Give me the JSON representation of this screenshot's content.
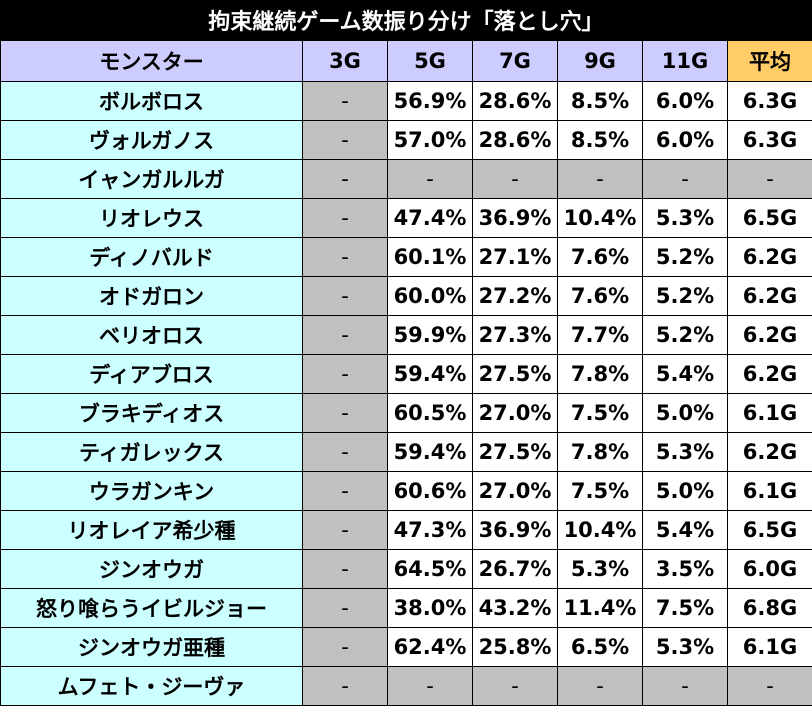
{
  "title": "拘束継続ゲーム数振り分け「落とし穴」",
  "table": {
    "headers": [
      "モンスター",
      "3G",
      "5G",
      "7G",
      "9G",
      "11G",
      "平均"
    ],
    "rows": [
      {
        "name": "ボルボロス",
        "g3": "-",
        "g5": "56.9%",
        "g7": "28.6%",
        "g9": "8.5%",
        "g11": "6.0%",
        "avg": "6.3G"
      },
      {
        "name": "ヴォルガノス",
        "g3": "-",
        "g5": "57.0%",
        "g7": "28.6%",
        "g9": "8.5%",
        "g11": "6.0%",
        "avg": "6.3G"
      },
      {
        "name": "イャンガルルガ",
        "g3": "-",
        "g5": "-",
        "g7": "-",
        "g9": "-",
        "g11": "-",
        "avg": "-"
      },
      {
        "name": "リオレウス",
        "g3": "-",
        "g5": "47.4%",
        "g7": "36.9%",
        "g9": "10.4%",
        "g11": "5.3%",
        "avg": "6.5G"
      },
      {
        "name": "ディノバルド",
        "g3": "-",
        "g5": "60.1%",
        "g7": "27.1%",
        "g9": "7.6%",
        "g11": "5.2%",
        "avg": "6.2G"
      },
      {
        "name": "オドガロン",
        "g3": "-",
        "g5": "60.0%",
        "g7": "27.2%",
        "g9": "7.6%",
        "g11": "5.2%",
        "avg": "6.2G"
      },
      {
        "name": "ベリオロス",
        "g3": "-",
        "g5": "59.9%",
        "g7": "27.3%",
        "g9": "7.7%",
        "g11": "5.2%",
        "avg": "6.2G"
      },
      {
        "name": "ディアブロス",
        "g3": "-",
        "g5": "59.4%",
        "g7": "27.5%",
        "g9": "7.8%",
        "g11": "5.4%",
        "avg": "6.2G"
      },
      {
        "name": "ブラキディオス",
        "g3": "-",
        "g5": "60.5%",
        "g7": "27.0%",
        "g9": "7.5%",
        "g11": "5.0%",
        "avg": "6.1G"
      },
      {
        "name": "ティガレックス",
        "g3": "-",
        "g5": "59.4%",
        "g7": "27.5%",
        "g9": "7.8%",
        "g11": "5.3%",
        "avg": "6.2G"
      },
      {
        "name": "ウラガンキン",
        "g3": "-",
        "g5": "60.6%",
        "g7": "27.0%",
        "g9": "7.5%",
        "g11": "5.0%",
        "avg": "6.1G"
      },
      {
        "name": "リオレイア希少種",
        "g3": "-",
        "g5": "47.3%",
        "g7": "36.9%",
        "g9": "10.4%",
        "g11": "5.4%",
        "avg": "6.5G"
      },
      {
        "name": "ジンオウガ",
        "g3": "-",
        "g5": "64.5%",
        "g7": "26.7%",
        "g9": "5.3%",
        "g11": "3.5%",
        "avg": "6.0G"
      },
      {
        "name": "怒り喰らうイビルジョー",
        "g3": "-",
        "g5": "38.0%",
        "g7": "43.2%",
        "g9": "11.4%",
        "g11": "7.5%",
        "avg": "6.8G"
      },
      {
        "name": "ジンオウガ亜種",
        "g3": "-",
        "g5": "62.4%",
        "g7": "25.8%",
        "g9": "6.5%",
        "g11": "5.3%",
        "avg": "6.1G"
      },
      {
        "name": "ムフェト・ジーヴァ",
        "g3": "-",
        "g5": "-",
        "g7": "-",
        "g9": "-",
        "g11": "-",
        "avg": "-"
      }
    ]
  },
  "colors": {
    "title_bg": "#000000",
    "header_bg": "#ccccff",
    "header_avg_bg": "#ffcc66",
    "name_bg": "#ccffff",
    "empty_bg": "#c0c0c0",
    "value_bg": "#ffffff"
  }
}
